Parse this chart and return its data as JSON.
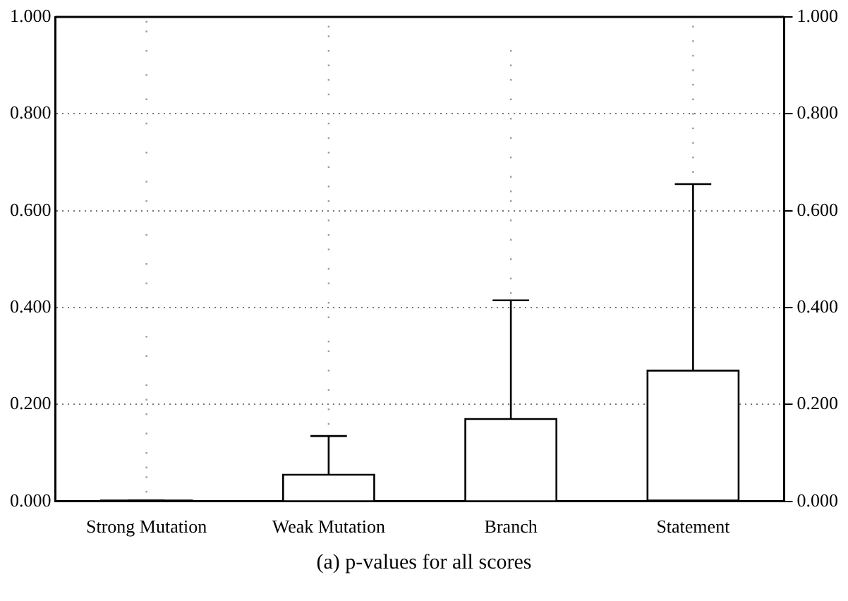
{
  "chart_data": {
    "type": "box",
    "title": "(a) p-values for all scores",
    "categories": [
      "Strong Mutation",
      "Weak Mutation",
      "Branch",
      "Statement"
    ],
    "boxes": [
      {
        "low": 0,
        "q1": 0,
        "median": 0,
        "q3": 0.002,
        "high": 0.002,
        "outliers": [
          0.02,
          0.05,
          0.07,
          0.1,
          0.14,
          0.18,
          0.21,
          0.24,
          0.3,
          0.34,
          0.4,
          0.45,
          0.49,
          0.55,
          0.62,
          0.66,
          0.72,
          0.78,
          0.83,
          0.88,
          0.93,
          0.97,
          0.99
        ]
      },
      {
        "low": 0,
        "q1": 0,
        "median": 0,
        "q3": 0.055,
        "high": 0.135,
        "outliers": [
          0.16,
          0.19,
          0.23,
          0.27,
          0.31,
          0.33,
          0.38,
          0.41,
          0.45,
          0.48,
          0.52,
          0.55,
          0.58,
          0.62,
          0.65,
          0.69,
          0.72,
          0.75,
          0.78,
          0.8,
          0.84,
          0.87,
          0.9,
          0.93,
          0.96,
          0.98
        ]
      },
      {
        "low": 0,
        "q1": 0,
        "median": 0,
        "q3": 0.17,
        "high": 0.415,
        "outliers": [
          0.43,
          0.46,
          0.5,
          0.54,
          0.58,
          0.62,
          0.64,
          0.67,
          0.71,
          0.75,
          0.79,
          0.83,
          0.87,
          0.9,
          0.93
        ]
      },
      {
        "low": 0,
        "q1": 0,
        "median": 0.002,
        "q3": 0.27,
        "high": 0.655,
        "outliers": [
          0.68,
          0.71,
          0.74,
          0.77,
          0.8,
          0.83,
          0.86,
          0.89,
          0.92,
          0.95,
          0.98,
          1.0
        ]
      }
    ],
    "color": "#ffffff",
    "ylim": [
      0,
      1
    ],
    "yticks": [
      {
        "value": 0,
        "label": "0.000"
      },
      {
        "value": 0.2,
        "label": "0.200"
      },
      {
        "value": 0.4,
        "label": "0.400"
      },
      {
        "value": 0.6,
        "label": "0.600"
      },
      {
        "value": 0.8,
        "label": "0.800"
      },
      {
        "value": 1,
        "label": "1.000"
      }
    ],
    "y2lim": [
      0,
      1
    ],
    "y2ticks": [
      {
        "value": 0,
        "label": "0.000"
      },
      {
        "value": 0.2,
        "label": "0.200"
      },
      {
        "value": 0.4,
        "label": "0.400"
      },
      {
        "value": 0.6,
        "label": "0.600"
      },
      {
        "value": 0.8,
        "label": "0.800"
      },
      {
        "value": 1,
        "label": "1.000"
      }
    ],
    "grid": "y",
    "legend": false
  }
}
